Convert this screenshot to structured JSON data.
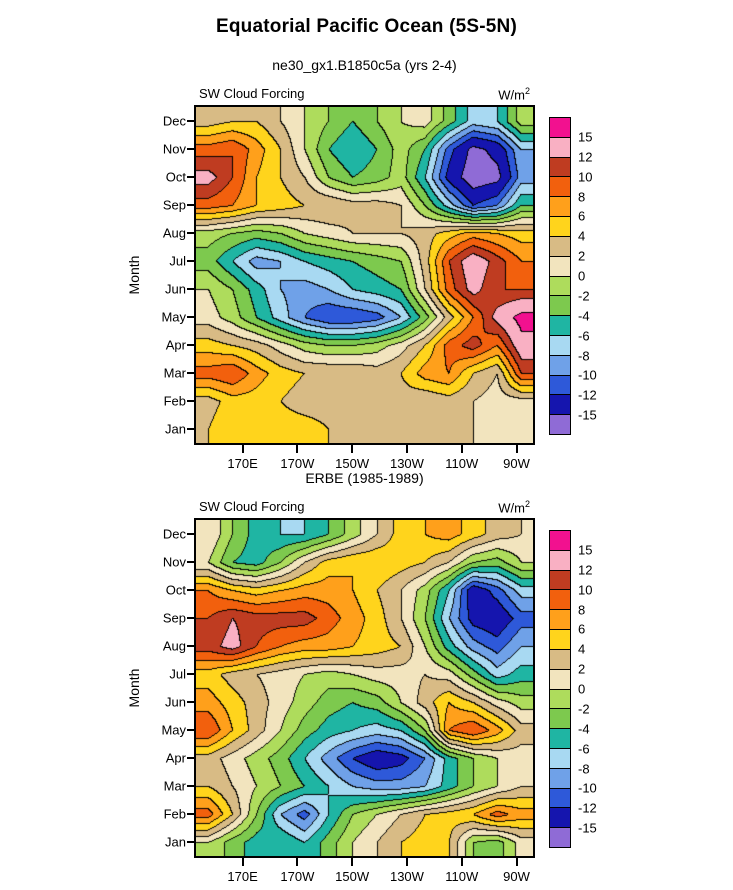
{
  "page": {
    "title": "Equatorial Pacific Ocean (5S-5N)"
  },
  "chart_data": [
    {
      "type": "heatmap",
      "title": "ne30_gx1.B1850c5a (yrs 2-4)",
      "inner_title_left": "SW Cloud Forcing",
      "units_base": "W/m",
      "units_exp": "2",
      "ylabel": "Month",
      "y_categories": [
        "Jan",
        "Feb",
        "Mar",
        "Apr",
        "May",
        "Jun",
        "Jul",
        "Aug",
        "Sep",
        "Oct",
        "Nov",
        "Dec"
      ],
      "x_tick_lons": [
        170,
        190,
        210,
        230,
        250,
        270
      ],
      "x_tick_labels": [
        "170E",
        "170W",
        "150W",
        "130W",
        "110W",
        "90W"
      ],
      "xlim": [
        153,
        276
      ],
      "grid": false,
      "legend_position": "right-colorbar",
      "levels": [
        -15,
        -12,
        -10,
        -8,
        -6,
        -4,
        -2,
        0,
        2,
        4,
        6,
        8,
        10,
        12,
        15
      ],
      "level_labels_top_to_bottom": [
        "15",
        "12",
        "10",
        "8",
        "6",
        "4",
        "2",
        "0",
        "-2",
        "-4",
        "-6",
        "-8",
        "-10",
        "-12",
        "-15"
      ],
      "palette_low_to_high": [
        "#8F6BD6",
        "#1515AE",
        "#2E59D9",
        "#6FA1E8",
        "#A8D9F2",
        "#1FB5A3",
        "#7DC94E",
        "#AEDC5C",
        "#F2E4BE",
        "#D8BB85",
        "#FFD41C",
        "#FFA01B",
        "#F2600D",
        "#BF3C21",
        "#F9B0C3",
        "#F2118F"
      ],
      "values_by_month": [
        [
          4,
          6,
          6,
          5,
          5,
          4,
          4,
          4,
          4,
          3,
          3,
          2,
          1,
          2
        ],
        [
          3,
          5,
          5,
          4,
          3,
          3,
          4,
          4,
          3,
          2,
          3,
          2,
          1,
          1
        ],
        [
          9,
          10,
          7,
          5,
          4,
          4,
          4,
          3,
          4,
          7,
          8,
          4,
          2,
          10
        ],
        [
          5,
          4,
          3,
          1,
          -1,
          -2,
          -2,
          -1,
          1,
          4,
          9,
          11,
          8,
          14
        ],
        [
          1,
          -1,
          -4,
          -7,
          -10,
          -12,
          -12,
          -11,
          -8,
          -3,
          3,
          8,
          13,
          16
        ],
        [
          0,
          -2,
          -5,
          -8,
          -9,
          -8,
          -6,
          -5,
          -4,
          2,
          9,
          13,
          10,
          10
        ],
        [
          -3,
          -6,
          -9,
          -8,
          -6,
          -5,
          -4,
          -3,
          -2,
          3,
          10,
          14,
          11,
          8
        ],
        [
          -1,
          -2,
          -3,
          -2,
          0,
          1,
          2,
          2,
          2,
          3,
          5,
          7,
          6,
          5
        ],
        [
          9,
          8,
          6,
          5,
          4,
          4,
          3,
          3,
          2,
          -2,
          -7,
          -12,
          -10,
          -4
        ],
        [
          13,
          10,
          6,
          4,
          2,
          -2,
          -4,
          -3,
          -1,
          -6,
          -13,
          -17,
          -16,
          -9
        ],
        [
          9,
          10,
          7,
          4,
          0,
          -4,
          -6,
          -4,
          -1,
          -4,
          -11,
          -16,
          -14,
          -8
        ],
        [
          3,
          4,
          4,
          2,
          0,
          -2,
          -4,
          -2,
          0,
          1,
          -3,
          -7,
          -6,
          -1
        ]
      ]
    },
    {
      "type": "heatmap",
      "title": "ERBE (1985-1989)",
      "inner_title_left": "SW Cloud Forcing",
      "units_base": "W/m",
      "units_exp": "2",
      "ylabel": "Month",
      "y_categories": [
        "Jan",
        "Feb",
        "Mar",
        "Apr",
        "May",
        "Jun",
        "Jul",
        "Aug",
        "Sep",
        "Oct",
        "Nov",
        "Dec"
      ],
      "x_tick_lons": [
        170,
        190,
        210,
        230,
        250,
        270
      ],
      "x_tick_labels": [
        "170E",
        "170W",
        "150W",
        "130W",
        "110W",
        "90W"
      ],
      "xlim": [
        153,
        276
      ],
      "grid": false,
      "legend_position": "right-colorbar",
      "levels": [
        -15,
        -12,
        -10,
        -8,
        -6,
        -4,
        -2,
        0,
        2,
        4,
        6,
        8,
        10,
        12,
        15
      ],
      "level_labels_top_to_bottom": [
        "15",
        "12",
        "10",
        "8",
        "6",
        "4",
        "2",
        "0",
        "-2",
        "-4",
        "-6",
        "-8",
        "-10",
        "-12",
        "-15"
      ],
      "palette_low_to_high": [
        "#8F6BD6",
        "#1515AE",
        "#2E59D9",
        "#6FA1E8",
        "#A8D9F2",
        "#1FB5A3",
        "#7DC94E",
        "#AEDC5C",
        "#F2E4BE",
        "#D8BB85",
        "#FFD41C",
        "#FFA01B",
        "#F2600D",
        "#BF3C21",
        "#F9B0C3",
        "#F2118F"
      ],
      "values_by_month": [
        [
          0,
          -3,
          -5,
          -4,
          -6,
          -3,
          0,
          2,
          4,
          5,
          4,
          -2,
          -3,
          1
        ],
        [
          9,
          4,
          -2,
          -8,
          -11,
          -6,
          -2,
          0,
          2,
          4,
          5,
          6,
          9,
          7
        ],
        [
          4,
          2,
          0,
          -2,
          -4,
          -6,
          -8,
          -9,
          -9,
          -8,
          -5,
          -2,
          0,
          2
        ],
        [
          3,
          1,
          -1,
          -3,
          -6,
          -9,
          -12,
          -14,
          -13,
          -10,
          -5,
          -2,
          0,
          1
        ],
        [
          10,
          6,
          3,
          0,
          -3,
          -5,
          -6,
          -7,
          -6,
          -2,
          8,
          10,
          7,
          3
        ],
        [
          7,
          5,
          3,
          1,
          -1,
          -3,
          -4,
          -3,
          0,
          3,
          6,
          4,
          1,
          -1
        ],
        [
          5,
          3,
          2,
          1,
          0,
          -1,
          0,
          1,
          1,
          2,
          1,
          -3,
          -7,
          -5
        ],
        [
          11,
          13,
          10,
          8,
          7,
          7,
          6,
          5,
          4,
          0,
          -5,
          -9,
          -11,
          -8
        ],
        [
          10,
          12,
          11,
          11,
          11,
          9,
          7,
          5,
          2,
          -2,
          -8,
          -13,
          -14,
          -11
        ],
        [
          8,
          6,
          5,
          6,
          7,
          7,
          6,
          4,
          2,
          -1,
          -6,
          -14,
          -11,
          -7
        ],
        [
          0,
          -4,
          -5,
          -2,
          2,
          5,
          6,
          6,
          5,
          4,
          2,
          -2,
          -3,
          0
        ],
        [
          2,
          -2,
          -5,
          -6,
          -6,
          -4,
          -1,
          2,
          5,
          6,
          7,
          5,
          3,
          2
        ]
      ]
    }
  ]
}
